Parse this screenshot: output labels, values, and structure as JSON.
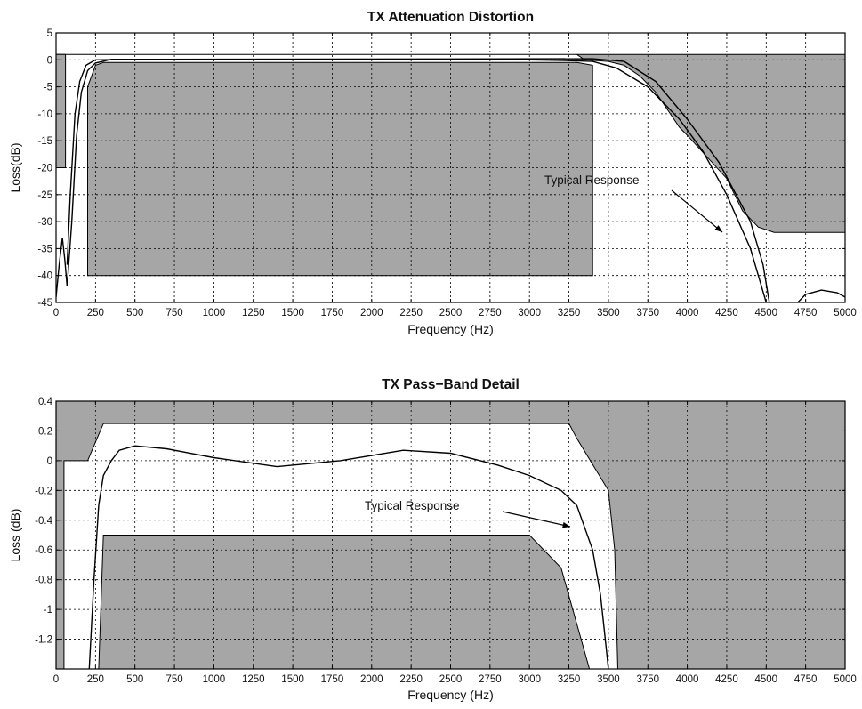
{
  "chart_data": [
    {
      "type": "line",
      "title": "TX Attenuation Distortion",
      "xlabel": "Frequency  (Hz)",
      "ylabel": "Loss(dB)",
      "xlim": [
        0,
        5000
      ],
      "ylim": [
        -45,
        5
      ],
      "xticks": [
        "0",
        "250",
        "500",
        "750",
        "1000",
        "1250",
        "1500",
        "1750",
        "2000",
        "2250",
        "2500",
        "2750",
        "3000",
        "3250",
        "3500",
        "3750",
        "4000",
        "4250",
        "4500",
        "4750",
        "5000"
      ],
      "yticks": [
        "5",
        "0",
        "-5",
        "-10",
        "-15",
        "-20",
        "-25",
        "-30",
        "-35",
        "-40",
        "-45"
      ],
      "grid": true,
      "mask_color": "#a6a6a6",
      "mask_regions": [
        {
          "name": "upper-limit",
          "points": [
            [
              0,
              1
            ],
            [
              5000,
              1
            ],
            [
              5000,
              -32
            ],
            [
              4550,
              -32
            ],
            [
              4450,
              -31
            ],
            [
              4350,
              -28
            ],
            [
              4300,
              -25
            ],
            [
              4250,
              -22
            ],
            [
              4000,
              -14
            ],
            [
              3950,
              -12.5
            ],
            [
              3800,
              -6
            ],
            [
              3700,
              -3
            ],
            [
              3600,
              -1
            ],
            [
              3500,
              -0.3
            ],
            [
              3350,
              0
            ],
            [
              3300,
              1
            ]
          ]
        },
        {
          "name": "low-frequency-limit",
          "points": [
            [
              0,
              1
            ],
            [
              60,
              1
            ],
            [
              60,
              -20
            ],
            [
              0,
              -20
            ]
          ]
        },
        {
          "name": "pass-band-lower-limit",
          "points": [
            [
              200,
              -40
            ],
            [
              200,
              -5
            ],
            [
              250,
              -1
            ],
            [
              300,
              -0.5
            ],
            [
              3300,
              -0.5
            ],
            [
              3400,
              -1
            ],
            [
              3400,
              -40
            ]
          ]
        }
      ],
      "series": [
        {
          "points": [
            [
              70,
              -42
            ],
            [
              100,
              -30
            ],
            [
              130,
              -14
            ],
            [
              160,
              -6
            ],
            [
              200,
              -2
            ],
            [
              250,
              -0.6
            ],
            [
              350,
              0.1
            ],
            [
              600,
              0.1
            ],
            [
              1500,
              0
            ],
            [
              2500,
              0.1
            ],
            [
              3000,
              0
            ],
            [
              3200,
              -0.1
            ],
            [
              3400,
              -0.3
            ],
            [
              3550,
              -1.5
            ],
            [
              3750,
              -5
            ],
            [
              3950,
              -11
            ],
            [
              4100,
              -17
            ],
            [
              4250,
              -25
            ],
            [
              4400,
              -35
            ],
            [
              4500,
              -45
            ]
          ]
        },
        {
          "points": [
            [
              70,
              -38
            ],
            [
              90,
              -25
            ],
            [
              120,
              -10
            ],
            [
              150,
              -4
            ],
            [
              190,
              -1
            ],
            [
              250,
              0
            ],
            [
              600,
              0.1
            ],
            [
              3400,
              0.2
            ],
            [
              3600,
              -0.3
            ],
            [
              3800,
              -4
            ],
            [
              4000,
              -11
            ],
            [
              4200,
              -19
            ],
            [
              4400,
              -30
            ],
            [
              4480,
              -38
            ],
            [
              4520,
              -45
            ]
          ]
        },
        {
          "points": [
            [
              0,
              -44
            ],
            [
              20,
              -38
            ],
            [
              40,
              -33
            ],
            [
              55,
              -37
            ],
            [
              70,
              -42
            ]
          ]
        },
        {
          "points": [
            [
              4700,
              -45
            ],
            [
              4750,
              -43.5
            ],
            [
              4850,
              -42.7
            ],
            [
              4950,
              -43.2
            ],
            [
              5000,
              -44
            ]
          ]
        }
      ],
      "annotation": {
        "text": "Typical Response",
        "point": [
          4250,
          -30
        ]
      }
    },
    {
      "type": "line",
      "title": "TX Pass−Band Detail",
      "xlabel": "Frequency  (Hz)",
      "ylabel": "Loss (dB)",
      "xlim": [
        0,
        5000
      ],
      "ylim": [
        -1.4,
        0.4
      ],
      "xticks": [
        "0",
        "250",
        "500",
        "750",
        "1000",
        "1250",
        "1500",
        "1750",
        "2000",
        "2250",
        "2500",
        "2750",
        "3000",
        "3250",
        "3500",
        "3750",
        "4000",
        "4250",
        "4500",
        "4750",
        "5000"
      ],
      "yticks": [
        "0.4",
        "0.2",
        "0",
        "-0.2",
        "-0.4",
        "-0.6",
        "-0.8",
        "-1",
        "-1.2"
      ],
      "grid": true,
      "mask_color": "#a6a6a6",
      "mask_regions": [
        {
          "name": "upper-limit",
          "points": [
            [
              0,
              0.4
            ],
            [
              5000,
              0.4
            ],
            [
              5000,
              -1.4
            ],
            [
              3560,
              -1.4
            ],
            [
              3540,
              -0.6
            ],
            [
              3500,
              -0.2
            ],
            [
              3300,
              0.15
            ],
            [
              3250,
              0.25
            ],
            [
              300,
              0.25
            ],
            [
              200,
              0
            ],
            [
              50,
              0
            ],
            [
              50,
              -1.4
            ],
            [
              0,
              -1.4
            ]
          ]
        },
        {
          "name": "lower-limit",
          "points": [
            [
              270,
              -1.4
            ],
            [
              300,
              -0.5
            ],
            [
              3000,
              -0.5
            ],
            [
              3200,
              -0.72
            ],
            [
              3380,
              -1.4
            ]
          ]
        }
      ],
      "series": [
        {
          "points": [
            [
              210,
              -1.4
            ],
            [
              240,
              -0.8
            ],
            [
              270,
              -0.3
            ],
            [
              300,
              -0.1
            ],
            [
              350,
              0
            ],
            [
              400,
              0.07
            ],
            [
              500,
              0.1
            ],
            [
              700,
              0.08
            ],
            [
              1000,
              0.02
            ],
            [
              1400,
              -0.04
            ],
            [
              1800,
              0
            ],
            [
              2200,
              0.07
            ],
            [
              2500,
              0.05
            ],
            [
              2800,
              -0.03
            ],
            [
              3000,
              -0.1
            ],
            [
              3200,
              -0.2
            ],
            [
              3300,
              -0.3
            ],
            [
              3400,
              -0.6
            ],
            [
              3450,
              -0.9
            ],
            [
              3480,
              -1.2
            ],
            [
              3500,
              -1.4
            ]
          ]
        }
      ],
      "annotation": {
        "text": "Typical Response",
        "point": [
          3260,
          -0.43
        ]
      }
    }
  ]
}
